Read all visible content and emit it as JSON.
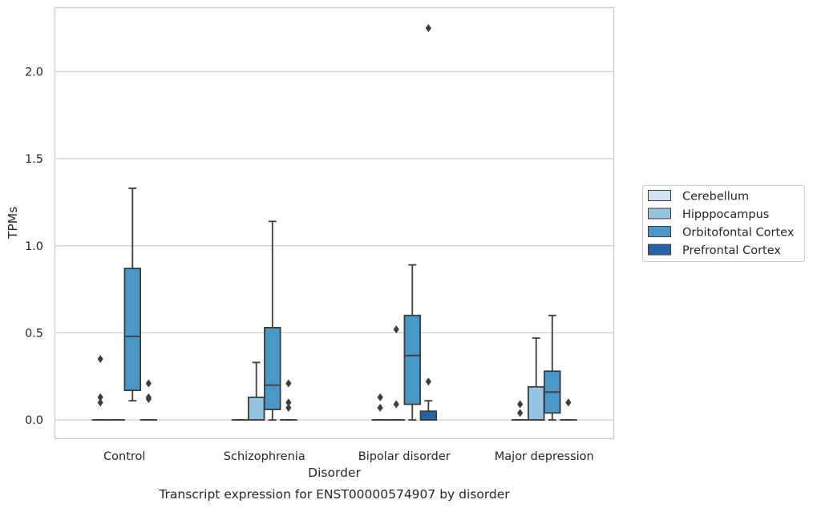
{
  "chart_data": {
    "type": "box",
    "caption": "Transcript expression for ENST00000574907 by disorder",
    "xlabel": "Disorder",
    "ylabel": "TPMs",
    "categories": [
      "Control",
      "Schizophrenia",
      "Bipolar disorder",
      "Major depression"
    ],
    "ylim": [
      -0.11,
      2.37
    ],
    "yticks": [
      0.0,
      0.5,
      1.0,
      1.5,
      2.0
    ],
    "ytick_labels": [
      "0.0",
      "0.5",
      "1.0",
      "1.5",
      "2.0"
    ],
    "grid": "horizontal",
    "legend_position": "right",
    "series": [
      {
        "name": "Cerebellum",
        "color": "#d0e1f2",
        "boxes": [
          {
            "q1": 0.0,
            "median": 0.0,
            "q3": 0.0,
            "whislo": 0.0,
            "whishi": 0.0,
            "fliers": [
              0.1,
              0.13,
              0.35
            ]
          },
          {
            "q1": 0.0,
            "median": 0.0,
            "q3": 0.0,
            "whislo": 0.0,
            "whishi": 0.0,
            "fliers": []
          },
          {
            "q1": 0.0,
            "median": 0.0,
            "q3": 0.0,
            "whislo": 0.0,
            "whishi": 0.0,
            "fliers": [
              0.07,
              0.13
            ]
          },
          {
            "q1": 0.0,
            "median": 0.0,
            "q3": 0.0,
            "whislo": 0.0,
            "whishi": 0.0,
            "fliers": [
              0.04,
              0.09
            ]
          }
        ]
      },
      {
        "name": "Hipppocampus",
        "color": "#94c4df",
        "boxes": [
          {
            "q1": 0.0,
            "median": 0.0,
            "q3": 0.0,
            "whislo": 0.0,
            "whishi": 0.0,
            "fliers": []
          },
          {
            "q1": 0.0,
            "median": 0.0,
            "q3": 0.13,
            "whislo": 0.0,
            "whishi": 0.33,
            "fliers": []
          },
          {
            "q1": 0.0,
            "median": 0.0,
            "q3": 0.0,
            "whislo": 0.0,
            "whishi": 0.0,
            "fliers": [
              0.09,
              0.52
            ]
          },
          {
            "q1": 0.0,
            "median": 0.0,
            "q3": 0.19,
            "whislo": 0.0,
            "whishi": 0.47,
            "fliers": []
          }
        ]
      },
      {
        "name": "Orbitofontal Cortex",
        "color": "#4a98c9",
        "boxes": [
          {
            "q1": 0.17,
            "median": 0.48,
            "q3": 0.87,
            "whislo": 0.11,
            "whishi": 1.33,
            "fliers": []
          },
          {
            "q1": 0.06,
            "median": 0.2,
            "q3": 0.53,
            "whislo": 0.0,
            "whishi": 1.14,
            "fliers": []
          },
          {
            "q1": 0.09,
            "median": 0.37,
            "q3": 0.6,
            "whislo": 0.0,
            "whishi": 0.89,
            "fliers": []
          },
          {
            "q1": 0.04,
            "median": 0.16,
            "q3": 0.28,
            "whislo": 0.0,
            "whishi": 0.6,
            "fliers": []
          }
        ]
      },
      {
        "name": "Prefrontal Cortex",
        "color": "#2264aa",
        "boxes": [
          {
            "q1": 0.0,
            "median": 0.0,
            "q3": 0.0,
            "whislo": 0.0,
            "whishi": 0.0,
            "fliers": [
              0.12,
              0.13,
              0.21
            ]
          },
          {
            "q1": 0.0,
            "median": 0.0,
            "q3": 0.0,
            "whislo": 0.0,
            "whishi": 0.0,
            "fliers": [
              0.07,
              0.1,
              0.21
            ]
          },
          {
            "q1": 0.0,
            "median": 0.0,
            "q3": 0.05,
            "whislo": 0.0,
            "whishi": 0.11,
            "fliers": [
              0.22,
              2.25
            ]
          },
          {
            "q1": 0.0,
            "median": 0.0,
            "q3": 0.0,
            "whislo": 0.0,
            "whishi": 0.0,
            "fliers": [
              0.1
            ]
          }
        ]
      }
    ]
  }
}
